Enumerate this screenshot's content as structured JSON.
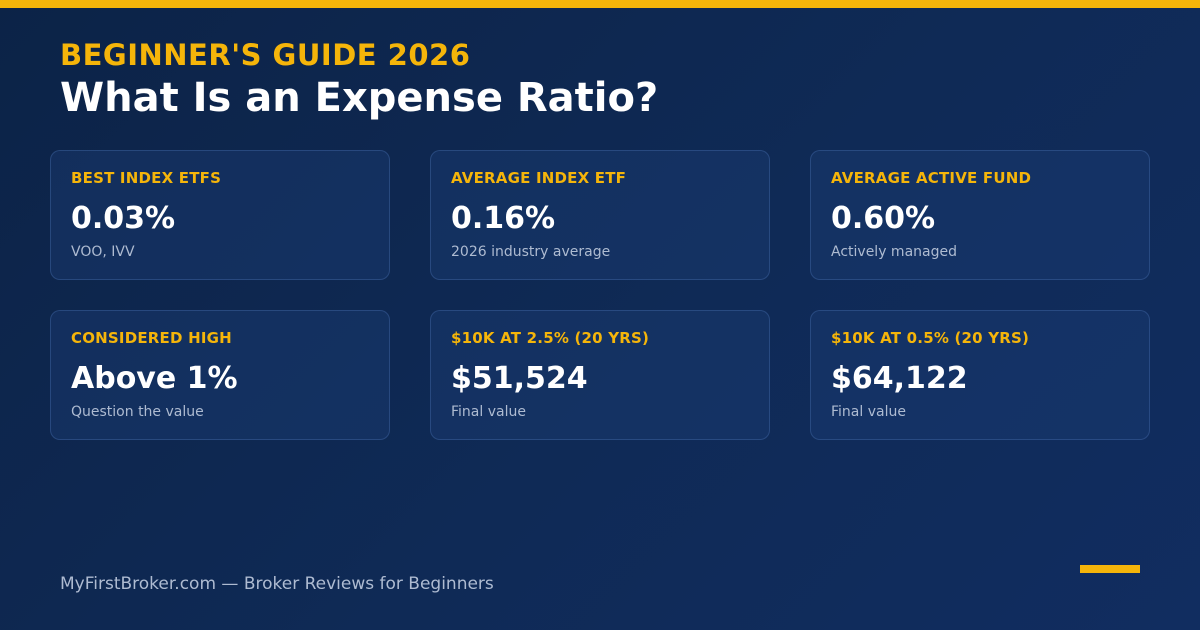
{
  "header": {
    "eyebrow": "BEGINNER'S GUIDE 2026",
    "title": "What Is an Expense Ratio?"
  },
  "cards": [
    {
      "label": "BEST INDEX ETFS",
      "value": "0.03%",
      "sub": "VOO, IVV"
    },
    {
      "label": "AVERAGE INDEX ETF",
      "value": "0.16%",
      "sub": "2026 industry average"
    },
    {
      "label": "AVERAGE ACTIVE FUND",
      "value": "0.60%",
      "sub": "Actively managed"
    },
    {
      "label": "CONSIDERED HIGH",
      "value": "Above 1%",
      "sub": "Question the value"
    },
    {
      "label": "$10K AT 2.5% (20 YRS)",
      "value": "$51,524",
      "sub": "Final value"
    },
    {
      "label": "$10K AT 0.5% (20 YRS)",
      "value": "$64,122",
      "sub": "Final value"
    }
  ],
  "footer": {
    "text": "MyFirstBroker.com — Broker Reviews for Beginners"
  },
  "colors": {
    "accent": "#f5b50a",
    "background": "#0f2a56",
    "card_background": "#15356a",
    "muted_text": "#aebbd1",
    "title_text": "#ffffff"
  }
}
